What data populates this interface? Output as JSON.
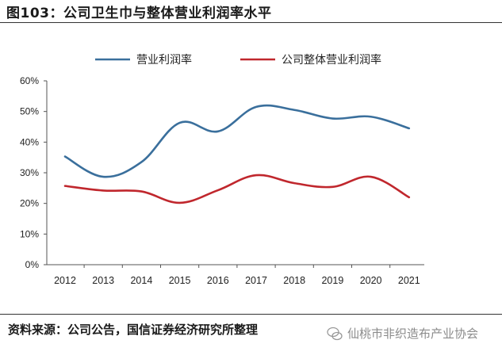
{
  "title": "图103：公司卫生巾与整体营业利润率水平",
  "source": "资料来源：公司公告，国信证券经济研究所整理",
  "watermark": "仙桃市非织造布产业协会",
  "chart_data": {
    "type": "line",
    "x": [
      "2012",
      "2013",
      "2014",
      "2015",
      "2016",
      "2017",
      "2018",
      "2019",
      "2020",
      "2021"
    ],
    "series": [
      {
        "name": "营业利润率",
        "color": "#3a6f9c",
        "values": [
          35.3,
          28.7,
          33.5,
          46.3,
          43.5,
          51.5,
          50.5,
          47.7,
          48.3,
          44.5
        ]
      },
      {
        "name": "公司整体营业利润率",
        "color": "#c0272d",
        "values": [
          25.7,
          24.2,
          23.9,
          20.2,
          24.3,
          29.2,
          26.6,
          25.4,
          28.7,
          22.0
        ]
      }
    ],
    "yticks": [
      "0%",
      "10%",
      "20%",
      "30%",
      "40%",
      "50%",
      "60%"
    ],
    "ylim": [
      0,
      60
    ],
    "legend": "top"
  }
}
